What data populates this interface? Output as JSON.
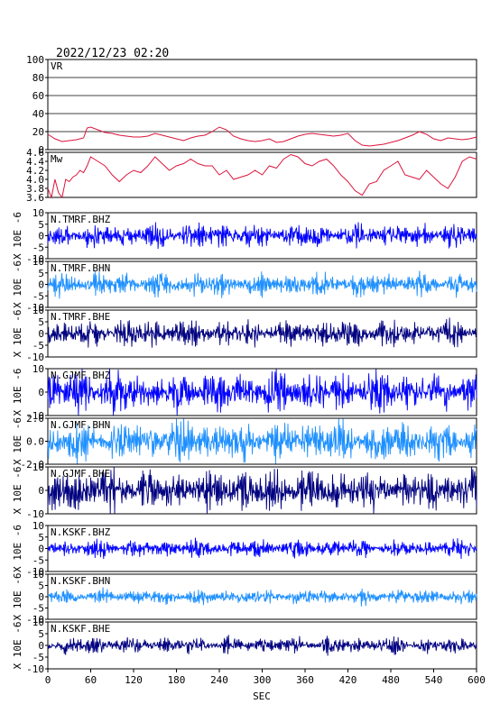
{
  "header": {
    "datetime": "2022/12/23  02:20"
  },
  "chart_data": {
    "type": "line",
    "xlabel": "SEC",
    "xlim": [
      0,
      600
    ],
    "xticks": [
      0,
      60,
      120,
      180,
      240,
      300,
      360,
      420,
      480,
      540,
      600
    ],
    "ylabel_waveform": "X 10E -6",
    "colors": {
      "vr": "#dc143c",
      "mw": "#dc143c",
      "bhz": "#0000ff",
      "bhn": "#1e90ff",
      "bhe": "#000080",
      "grid": "#000000"
    },
    "panels": [
      {
        "id": "vr",
        "label": "VR",
        "ylim": [
          0,
          100
        ],
        "yticks": [
          0,
          20,
          40,
          60,
          80,
          100
        ],
        "grid": true,
        "color_key": "vr",
        "series": {
          "x": [
            0,
            10,
            20,
            30,
            40,
            50,
            55,
            60,
            70,
            80,
            90,
            100,
            110,
            120,
            130,
            140,
            150,
            160,
            170,
            180,
            190,
            200,
            210,
            220,
            230,
            240,
            250,
            260,
            270,
            280,
            290,
            300,
            310,
            320,
            330,
            340,
            350,
            360,
            370,
            380,
            390,
            400,
            410,
            420,
            430,
            440,
            450,
            460,
            470,
            480,
            490,
            500,
            510,
            520,
            530,
            540,
            550,
            560,
            570,
            580,
            590,
            600
          ],
          "y": [
            17,
            12,
            9,
            10,
            11,
            13,
            24,
            25,
            22,
            19,
            18,
            16,
            15,
            14,
            14,
            15,
            18,
            16,
            14,
            12,
            10,
            13,
            15,
            16,
            20,
            25,
            22,
            15,
            12,
            10,
            9,
            10,
            12,
            8,
            9,
            12,
            15,
            17,
            18,
            17,
            16,
            15,
            16,
            18,
            10,
            5,
            4,
            5,
            6,
            8,
            10,
            13,
            16,
            20,
            17,
            12,
            10,
            13,
            12,
            11,
            12,
            14
          ]
        }
      },
      {
        "id": "mw",
        "label": "Mw",
        "ylim": [
          3.6,
          4.6
        ],
        "yticks": [
          3.6,
          3.8,
          4.0,
          4.2,
          4.4,
          4.6
        ],
        "color_key": "mw",
        "series": {
          "x": [
            0,
            5,
            10,
            15,
            20,
            25,
            30,
            35,
            40,
            45,
            50,
            55,
            60,
            70,
            80,
            90,
            100,
            110,
            120,
            130,
            140,
            150,
            160,
            170,
            180,
            190,
            200,
            210,
            220,
            230,
            240,
            250,
            260,
            270,
            280,
            290,
            300,
            310,
            320,
            330,
            340,
            350,
            360,
            370,
            380,
            390,
            400,
            410,
            420,
            430,
            440,
            450,
            460,
            470,
            480,
            490,
            500,
            510,
            520,
            530,
            540,
            550,
            560,
            570,
            580,
            590,
            600
          ],
          "y": [
            3.8,
            3.6,
            4.0,
            3.7,
            3.6,
            4.0,
            3.95,
            4.05,
            4.1,
            4.2,
            4.15,
            4.3,
            4.5,
            4.4,
            4.3,
            4.1,
            3.95,
            4.1,
            4.2,
            4.15,
            4.3,
            4.5,
            4.35,
            4.2,
            4.3,
            4.35,
            4.45,
            4.35,
            4.3,
            4.3,
            4.1,
            4.2,
            4.0,
            4.05,
            4.1,
            4.2,
            4.1,
            4.3,
            4.25,
            4.45,
            4.55,
            4.5,
            4.35,
            4.3,
            4.4,
            4.45,
            4.3,
            4.1,
            3.95,
            3.75,
            3.65,
            3.9,
            3.95,
            4.2,
            4.3,
            4.4,
            4.1,
            4.05,
            4.0,
            4.2,
            4.05,
            3.9,
            3.8,
            4.05,
            4.4,
            4.5,
            4.45
          ]
        }
      },
      {
        "id": "tmr-bhz",
        "label": "N.TMRF.BHZ",
        "ylim": [
          -10,
          10
        ],
        "yticks": [
          -10,
          -5,
          0,
          5,
          10
        ],
        "color_key": "bhz",
        "amplitude": 4.5,
        "seed": 11
      },
      {
        "id": "tmr-bhn",
        "label": "N.TMRF.BHN",
        "ylim": [
          -10,
          10
        ],
        "yticks": [
          -10,
          -5,
          0,
          5,
          10
        ],
        "color_key": "bhn",
        "amplitude": 4.2,
        "seed": 23
      },
      {
        "id": "tmr-bhe",
        "label": "N.TMRF.BHE",
        "ylim": [
          -10,
          10
        ],
        "yticks": [
          -10,
          -5,
          0,
          5,
          10
        ],
        "color_key": "bhe",
        "amplitude": 4.8,
        "seed": 37
      },
      {
        "id": "gjm-bhz",
        "label": "N.GJMF.BHZ",
        "ylim": [
          -10,
          10
        ],
        "yticks": [
          -10,
          0,
          10
        ],
        "color_key": "bhz",
        "amplitude": 7.5,
        "seed": 41
      },
      {
        "id": "gjm-bhn",
        "label": "N.GJMF.BHN",
        "ylim": [
          -2,
          2
        ],
        "yticks": [
          -2,
          0,
          2
        ],
        "color_key": "bhn",
        "amplitude": 1.5,
        "seed": 53
      },
      {
        "id": "gjm-bhe",
        "label": "N.GJMF.BHE",
        "ylim": [
          -10,
          10
        ],
        "yticks": [
          -10,
          0,
          10
        ],
        "color_key": "bhe",
        "amplitude": 7.5,
        "seed": 67
      },
      {
        "id": "ksk-bhz",
        "label": "N.KSKF.BHZ",
        "ylim": [
          -10,
          10
        ],
        "yticks": [
          -10,
          -5,
          0,
          5,
          10
        ],
        "color_key": "bhz",
        "amplitude": 3.2,
        "seed": 71
      },
      {
        "id": "ksk-bhn",
        "label": "N.KSKF.BHN",
        "ylim": [
          -10,
          10
        ],
        "yticks": [
          -10,
          -5,
          0,
          5,
          10
        ],
        "color_key": "bhn",
        "amplitude": 2.8,
        "seed": 83
      },
      {
        "id": "ksk-bhe",
        "label": "N.KSKF.BHE",
        "ylim": [
          -10,
          10
        ],
        "yticks": [
          -10,
          -5,
          0,
          5,
          10
        ],
        "color_key": "bhe",
        "amplitude": 3.0,
        "seed": 97
      }
    ]
  }
}
